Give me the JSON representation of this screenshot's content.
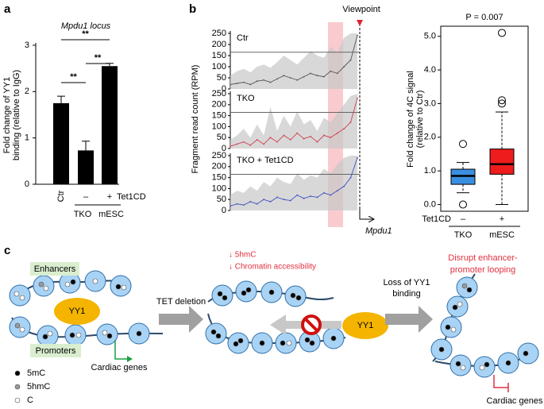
{
  "panel_labels": [
    "a",
    "b",
    "c"
  ],
  "chart_data": [
    {
      "type": "bar",
      "title": "Mpdu1 locus",
      "y_label": [
        "Fold change of YY1",
        "binding (relative to IgG)"
      ],
      "categories": [
        "Ctr",
        "–",
        "+"
      ],
      "values": [
        1.75,
        0.73,
        2.55
      ],
      "errors": [
        0.15,
        0.2,
        0.06
      ],
      "color": "#000000",
      "ylim": [
        0,
        3
      ],
      "yticks": [
        0,
        1,
        2,
        3
      ],
      "x_label": "Tet1CD",
      "groups": [
        "TKO",
        "mESC"
      ],
      "annotations": [
        "**",
        "**",
        "**"
      ]
    },
    {
      "type": "line",
      "series": [
        {
          "name": "Ctr",
          "color": "#555555",
          "values": [
            20,
            25,
            30,
            20,
            35,
            40,
            30,
            45,
            60,
            50,
            40,
            55,
            70,
            60,
            55,
            80,
            70,
            100,
            130,
            240
          ]
        }
      ],
      "band": [
        60,
        80,
        90,
        75,
        100,
        110,
        95,
        120,
        150,
        130,
        110,
        140,
        170,
        150,
        140,
        190,
        160,
        230,
        250,
        250
      ],
      "ylim": [
        0,
        250
      ],
      "yticks": [
        0,
        50,
        100,
        150,
        200,
        250
      ],
      "hline": 165
    },
    {
      "type": "line",
      "series": [
        {
          "name": "TKO",
          "color": "#d04050",
          "values": [
            10,
            20,
            30,
            15,
            40,
            20,
            50,
            30,
            60,
            40,
            70,
            45,
            55,
            30,
            60,
            50,
            70,
            90,
            120,
            230
          ]
        }
      ],
      "band": [
        40,
        60,
        90,
        50,
        110,
        60,
        190,
        80,
        150,
        100,
        170,
        110,
        130,
        80,
        140,
        120,
        160,
        200,
        240,
        250
      ],
      "ylim": [
        0,
        250
      ],
      "yticks": [
        0,
        50,
        100,
        150,
        200,
        250
      ],
      "hline": 165
    },
    {
      "type": "line",
      "series": [
        {
          "name": "TKO + Tet1CD",
          "color": "#4050c0",
          "values": [
            20,
            30,
            25,
            40,
            30,
            50,
            40,
            60,
            50,
            45,
            70,
            55,
            65,
            60,
            80,
            70,
            90,
            110,
            150,
            240
          ]
        }
      ],
      "band": [
        70,
        90,
        80,
        110,
        90,
        130,
        110,
        150,
        130,
        120,
        170,
        140,
        160,
        150,
        190,
        170,
        210,
        240,
        250,
        250
      ],
      "ylim": [
        0,
        250
      ],
      "yticks": [
        0,
        50,
        100,
        150,
        200,
        250
      ],
      "hline": 165
    },
    {
      "type": "box",
      "title": "P = 0.007",
      "y_label": [
        "Fold change of 4C signal",
        "(relative to Ctr)"
      ],
      "categories": [
        "–",
        "+"
      ],
      "x_label": "Tet1CD",
      "groups": [
        "TKO",
        "mESC"
      ],
      "boxes": [
        {
          "min": 0.35,
          "q1": 0.6,
          "median": 0.85,
          "q3": 1.05,
          "max": 1.25,
          "outliers": [
            1.8,
            0.0
          ],
          "color": "#3b8fe0"
        },
        {
          "min": 0.0,
          "q1": 0.9,
          "median": 1.2,
          "q3": 1.65,
          "max": 2.75,
          "outliers": [
            3.0,
            3.1,
            5.1
          ],
          "color": "#ee1c1c"
        }
      ],
      "ylim": [
        -0.2,
        5.3
      ],
      "yticks": [
        {
          "value": 0,
          "label": "0.0"
        },
        {
          "value": 1,
          "label": "1.0"
        },
        {
          "value": 2,
          "label": "2.0"
        },
        {
          "value": 3,
          "label": "3.0"
        },
        {
          "value": 4,
          "label": "4.0"
        },
        {
          "value": 5,
          "label": "5.0"
        }
      ]
    }
  ],
  "panel_b": {
    "y_label": "Fragment read count (RPM)",
    "viewpoint": "Viewpoint",
    "gene": "Mpdu1"
  },
  "diagram": {
    "enhancers": "Enhancers",
    "promoters": "Promoters",
    "yy1": "YY1",
    "tet_deletion": "TET deletion",
    "cardiac_genes": "Cardiac genes",
    "legend": [
      "5mC",
      "5hmC",
      "C"
    ],
    "notes": [
      "↓ 5hmC",
      "↓ Chromatin accessibility"
    ],
    "yy1_free": "YY1",
    "loss": [
      "Loss of YY1",
      "binding"
    ],
    "disrupt": [
      "Disrupt enhancer-",
      "promoter looping"
    ],
    "cardiac_genes_right": "Cardiac genes"
  }
}
